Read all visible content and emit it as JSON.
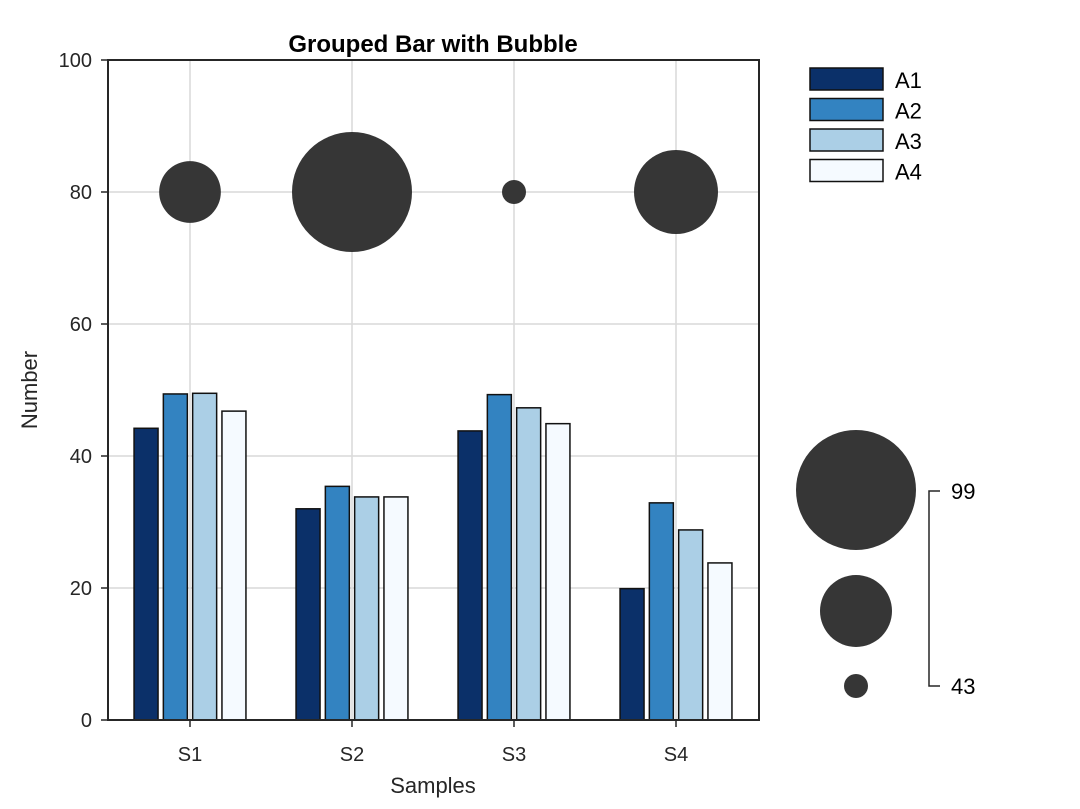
{
  "chart_data": {
    "type": "bar",
    "title": "Grouped Bar with Bubble",
    "xlabel": "Samples",
    "ylabel": "Number",
    "ylim": [
      0,
      100
    ],
    "yticks": [
      0,
      20,
      40,
      60,
      80,
      100
    ],
    "grid": true,
    "categories": [
      "S1",
      "S2",
      "S3",
      "S4"
    ],
    "series": [
      {
        "name": "A1",
        "color": "#0b3069",
        "values": [
          44.2,
          32.0,
          43.8,
          19.9
        ]
      },
      {
        "name": "A2",
        "color": "#3383c1",
        "values": [
          49.4,
          35.4,
          49.3,
          32.9
        ]
      },
      {
        "name": "A3",
        "color": "#abcfe6",
        "values": [
          49.5,
          33.8,
          47.3,
          28.8
        ]
      },
      {
        "name": "A4",
        "color": "#f5faff",
        "values": [
          46.8,
          33.8,
          44.9,
          23.8
        ]
      }
    ],
    "bubbles": {
      "y": 80,
      "color": "#363636",
      "sizes": [
        65,
        99,
        43,
        78
      ]
    },
    "size_legend": {
      "min_label": "43",
      "max_label": "99",
      "min": 43,
      "max": 99,
      "mid": 71
    },
    "legend_position": "top-right"
  }
}
